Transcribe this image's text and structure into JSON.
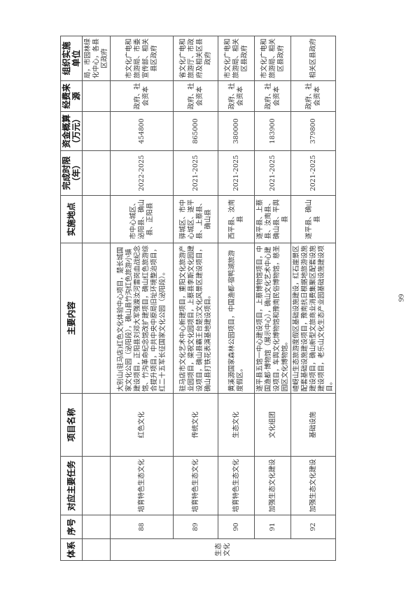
{
  "headers": [
    "体系",
    "序号",
    "对应主要任务",
    "项目名称",
    "主要内容",
    "实施地点",
    "完成时限（年）",
    "资金概算（万元）",
    "经费来源",
    "组织实施单位"
  ],
  "continuation": {
    "org": "局，市园林绿化中心，各县区政府"
  },
  "system": "生态文化",
  "rows": [
    {
      "no": "88",
      "task": "培育特色生态文化",
      "name": "红色文化",
      "content": "大别山(驻马店)红色文化体验中心项目，楚长城国家文化公园（泌阳段），确山县竹沟红色旅游小镇建设项目，正阳县刘邓大军强渡汝河雷岗血战纪念馆、竹沟革命纪念馆改扩建项目，确山红色旅游综合提升项目，中共中央中原局旧址环境整治项目，红二十五军长征国家文化公园（泌阳段）。",
      "place": "市中心城区、泌阳县、确山县、正阳县",
      "period": "2022-2025",
      "budget": "454800",
      "fund": "政府、社会资本",
      "org": "市文化广电和旅游局、市委宣传部、相关县区政府"
    },
    {
      "no": "89",
      "task": "培育特色生态文化",
      "name": "传统文化",
      "content": "驻马店市文化艺术中心新建项目，重阳文化旅游产业园项目，梁祝文化园项目，上蔡县李斯文化园建设项目，确山县霸王台楚汉文化风景区建设项目，确山县打铁花表演基地建设项目。",
      "place": "驿城区、市中心城区、遂平县、上蔡县、确山县",
      "period": "2021-2025",
      "budget": "865000",
      "fund": "政府、社会资本",
      "org": "省文化广电和旅游厅、市政府及相关区县政府"
    },
    {
      "no": "90",
      "task": "培育特色生态文化",
      "name": "生态文化",
      "content": "黄溪源国家森林公园项目，中国渔都·宿鸭湖旅游度假区。",
      "place": "西平县、汝南县",
      "period": "2021-2025",
      "budget": "380000",
      "fund": "政府、社会资本",
      "org": "市文化广电和旅游局、相关区县政府"
    },
    {
      "no": "91",
      "task": "加强生态文化建设",
      "name": "文化组团",
      "content": "遂平县五馆一中心建设项目，上蔡博物馆项目，中国渔都·博物馆（展示中心），确山文化艺术中心建设项目，车舆文化博物馆和豫南民俗博物馆，慈圣园区文化博物馆。",
      "place": "遂平县、上蔡县、汝南县、确山县、平舆县",
      "period": "2021-2025",
      "budget": "183900",
      "fund": "政府、社会资本",
      "org": "市文化广电和旅游局、相关区县政府"
    },
    {
      "no": "92",
      "task": "加强生态文化建设",
      "name": "基础设施",
      "content": "嵖岈山生态旅游度假区基础设施建设，红石崖景区配套基础设施建设项目，豫南抗日根据地旅游设施建设项目，确山新型文旅商业消费集聚区配套设施建设项目，老乐山文化生态产业园基础设施建设项目。",
      "place": "遂平县、确山县",
      "period": "2021-2025",
      "budget": "379800",
      "fund": "政府、社会资本",
      "org": "相关区县政府"
    }
  ],
  "page_number": "99"
}
